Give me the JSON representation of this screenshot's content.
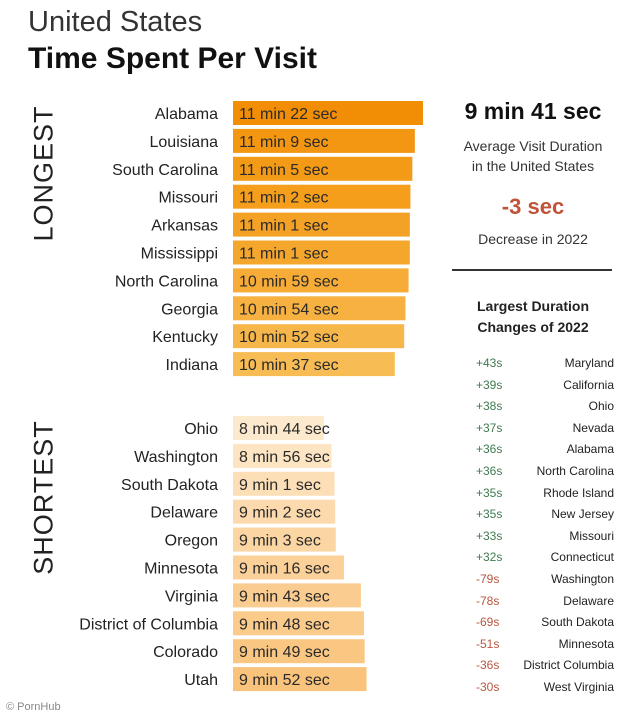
{
  "header": {
    "title": "United States",
    "subtitle": "Time Spent Per Visit"
  },
  "chart_data": [
    {
      "type": "bar",
      "orientation": "horizontal",
      "group_label": "LONGEST",
      "categories": [
        "Alabama",
        "Louisiana",
        "South Carolina",
        "Missouri",
        "Arkansas",
        "Mississippi",
        "North Carolina",
        "Georgia",
        "Kentucky",
        "Indiana"
      ],
      "values_seconds": [
        682,
        669,
        665,
        662,
        661,
        661,
        659,
        654,
        652,
        637
      ],
      "data_labels": [
        "11 min 22 sec",
        "11 min 9 sec",
        "11 min 5 sec",
        "11 min 2 sec",
        "11 min 1 sec",
        "11 min 1 sec",
        "10 min 59 sec",
        "10 min 54 sec",
        "10 min 52 sec",
        "10 min 37 sec"
      ],
      "colors": [
        "#f28d06",
        "#f39612",
        "#f39a17",
        "#f49e1c",
        "#f4a225",
        "#f5a72d",
        "#f6ac36",
        "#f6b140",
        "#f7b64a",
        "#f8bc55"
      ]
    },
    {
      "type": "bar",
      "orientation": "horizontal",
      "group_label": "SHORTEST",
      "categories": [
        "Ohio",
        "Washington",
        "South Dakota",
        "Delaware",
        "Oregon",
        "Minnesota",
        "Virginia",
        "District of Columbia",
        "Colorado",
        "Utah"
      ],
      "values_seconds": [
        524,
        536,
        541,
        542,
        543,
        556,
        583,
        588,
        589,
        592
      ],
      "data_labels": [
        "8 min 44 sec",
        "8 min 56 sec",
        "9 min 1 sec",
        "9 min 2 sec",
        "9 min 3 sec",
        "9 min 16 sec",
        "9 min 43 sec",
        "9 min 48 sec",
        "9 min 49 sec",
        "9 min 52 sec"
      ],
      "colors": [
        "#fde9cd",
        "#fde4c2",
        "#fcdfb7",
        "#fcdaad",
        "#fbd6a3",
        "#fbd199",
        "#fbcc8f",
        "#facb8a",
        "#fac783",
        "#f9c37c"
      ]
    }
  ],
  "summary": {
    "average_value": "9 min 41 sec",
    "average_caption": [
      "Average Visit Duration",
      "in the United States"
    ],
    "change_value": "-3 sec",
    "change_caption": "Decrease in 2022"
  },
  "changes": {
    "title": [
      "Largest Duration",
      "Changes of 2022"
    ],
    "rows": [
      {
        "value": "+43s",
        "state": "Maryland",
        "direction": "up"
      },
      {
        "value": "+39s",
        "state": "California",
        "direction": "up"
      },
      {
        "value": "+38s",
        "state": "Ohio",
        "direction": "up"
      },
      {
        "value": "+37s",
        "state": "Nevada",
        "direction": "up"
      },
      {
        "value": "+36s",
        "state": "Alabama",
        "direction": "up"
      },
      {
        "value": "+36s",
        "state": "North Carolina",
        "direction": "up"
      },
      {
        "value": "+35s",
        "state": "Rhode Island",
        "direction": "up"
      },
      {
        "value": "+35s",
        "state": "New Jersey",
        "direction": "up"
      },
      {
        "value": "+33s",
        "state": "Missouri",
        "direction": "up"
      },
      {
        "value": "+32s",
        "state": "Connecticut",
        "direction": "up"
      },
      {
        "value": "-79s",
        "state": "Washington",
        "direction": "down"
      },
      {
        "value": "-78s",
        "state": "Delaware",
        "direction": "down"
      },
      {
        "value": "-69s",
        "state": "South Dakota",
        "direction": "down"
      },
      {
        "value": "-51s",
        "state": "Minnesota",
        "direction": "down"
      },
      {
        "value": "-36s",
        "state": "District Columbia",
        "direction": "down"
      },
      {
        "value": "-30s",
        "state": "West Virginia",
        "direction": "down"
      }
    ]
  },
  "colors": {
    "accent_decrease": "#c0533a",
    "positive": "#3f7a4f",
    "negative": "#b8563e"
  },
  "watermark": "© PornHub"
}
